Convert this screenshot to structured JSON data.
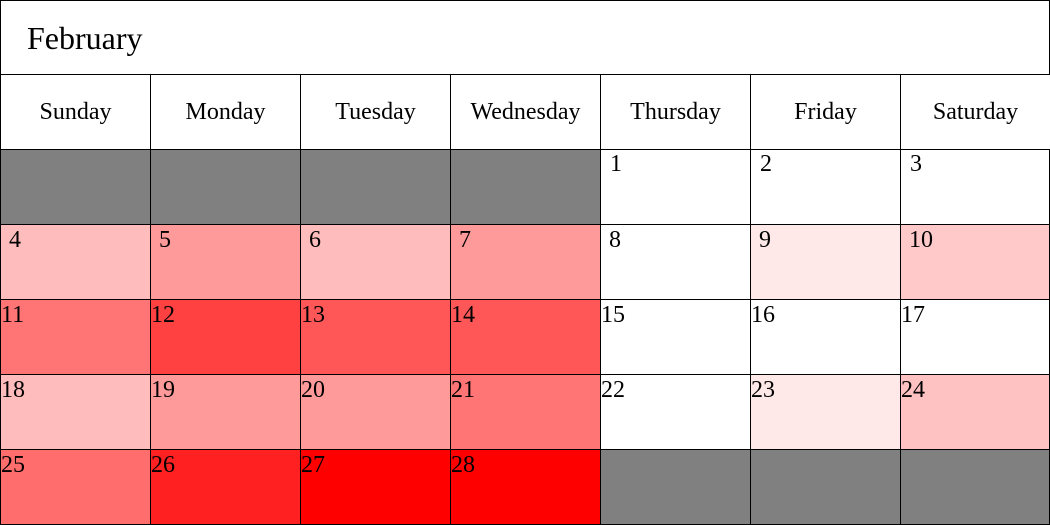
{
  "calendar": {
    "month": "February",
    "weekdays": [
      "Sunday",
      "Monday",
      "Tuesday",
      "Wednesday",
      "Thursday",
      "Friday",
      "Saturday"
    ],
    "weeks": [
      [
        {
          "day": "",
          "color": "#808080"
        },
        {
          "day": "",
          "color": "#808080"
        },
        {
          "day": "",
          "color": "#808080"
        },
        {
          "day": "",
          "color": "#808080"
        },
        {
          "day": "1",
          "color": "#ffffff"
        },
        {
          "day": "2",
          "color": "#ffffff"
        },
        {
          "day": "3",
          "color": "#ffffff"
        }
      ],
      [
        {
          "day": "4",
          "color": "#ffbcbc"
        },
        {
          "day": "5",
          "color": "#ff9a9a"
        },
        {
          "day": "6",
          "color": "#ffbcbc"
        },
        {
          "day": "7",
          "color": "#ff9a9a"
        },
        {
          "day": "8",
          "color": "#ffffff"
        },
        {
          "day": "9",
          "color": "#ffe8e8"
        },
        {
          "day": "10",
          "color": "#ffc9c9"
        }
      ],
      [
        {
          "day": "11",
          "color": "#ff7474"
        },
        {
          "day": "12",
          "color": "#ff4141"
        },
        {
          "day": "13",
          "color": "#ff5757"
        },
        {
          "day": "14",
          "color": "#ff5757"
        },
        {
          "day": "15",
          "color": "#ffffff"
        },
        {
          "day": "16",
          "color": "#ffffff"
        },
        {
          "day": "17",
          "color": "#ffffff"
        }
      ],
      [
        {
          "day": "18",
          "color": "#ffbcbc"
        },
        {
          "day": "19",
          "color": "#ff9a9a"
        },
        {
          "day": "20",
          "color": "#ff9a9a"
        },
        {
          "day": "21",
          "color": "#ff7474"
        },
        {
          "day": "22",
          "color": "#ffffff"
        },
        {
          "day": "23",
          "color": "#ffe8e8"
        },
        {
          "day": "24",
          "color": "#ffc2c2"
        }
      ],
      [
        {
          "day": "25",
          "color": "#ff6d6d"
        },
        {
          "day": "26",
          "color": "#ff2121"
        },
        {
          "day": "27",
          "color": "#ff0000"
        },
        {
          "day": "28",
          "color": "#ff0000"
        },
        {
          "day": "",
          "color": "#808080"
        },
        {
          "day": "",
          "color": "#808080"
        },
        {
          "day": "",
          "color": "#808080"
        }
      ]
    ]
  }
}
